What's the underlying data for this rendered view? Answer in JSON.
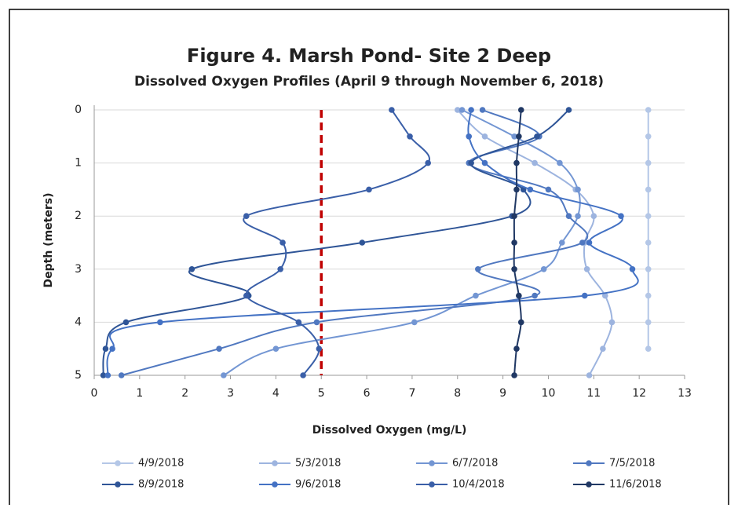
{
  "chart_data": {
    "type": "line",
    "title": "Figure 4. Marsh Pond- Site 2 Deep",
    "subtitle": "Dissolved Oxygen Profiles (April 9 through November 6, 2018)",
    "x_label": "Dissolved Oxygen (mg/L)",
    "y_label": "Depth (meters)",
    "xlim": [
      0,
      13
    ],
    "xticks": [
      0,
      1,
      2,
      3,
      4,
      5,
      6,
      7,
      8,
      9,
      10,
      11,
      12,
      13
    ],
    "ylim": [
      5,
      0
    ],
    "yticks": [
      0,
      1,
      2,
      3,
      4,
      5
    ],
    "grid": true,
    "legend": "bottom",
    "reference_line": {
      "x": 5,
      "color": "#c00000"
    },
    "series": [
      {
        "name": "4/9/2018",
        "color": "#b4c7e7",
        "x": [
          12.2,
          12.2,
          12.2,
          12.2,
          12.2,
          12.2,
          12.2,
          12.2,
          12.2,
          12.2
        ],
        "values": [
          0,
          0.5,
          1,
          1.5,
          2,
          2.5,
          3,
          3.5,
          4,
          4.5
        ]
      },
      {
        "name": "5/3/2018",
        "color": "#9db4df",
        "x": [
          8.0,
          8.6,
          9.7,
          10.6,
          11.0,
          10.8,
          10.85,
          11.25,
          11.4,
          11.2,
          10.9
        ],
        "values": [
          0,
          0.5,
          1,
          1.5,
          2,
          2.5,
          3,
          3.5,
          4,
          4.5,
          5
        ]
      },
      {
        "name": "6/7/2018",
        "color": "#7396d3",
        "x": [
          8.1,
          9.25,
          10.25,
          10.65,
          10.65,
          10.3,
          9.9,
          8.4,
          7.05,
          4.0,
          2.85
        ],
        "values": [
          0,
          0.5,
          1,
          1.5,
          2,
          2.5,
          3,
          3.5,
          4,
          4.5,
          5
        ]
      },
      {
        "name": "7/5/2018",
        "color": "#5078c0",
        "x": [
          8.55,
          9.8,
          8.25,
          10.0,
          10.45,
          10.75,
          8.45,
          9.7,
          4.9,
          2.75,
          0.6
        ],
        "values": [
          0,
          0.5,
          1,
          1.5,
          2,
          2.5,
          3,
          3.5,
          4,
          4.5,
          5
        ]
      },
      {
        "name": "8/9/2018",
        "color": "#2f5597",
        "x": [
          10.45,
          9.75,
          8.3,
          9.45,
          9.2,
          5.9,
          2.15,
          3.4,
          0.7,
          0.25,
          0.2
        ],
        "values": [
          0,
          0.5,
          1,
          1.5,
          2,
          2.5,
          3,
          3.5,
          4,
          4.5,
          5
        ]
      },
      {
        "name": "9/6/2018",
        "color": "#4472c4",
        "x": [
          8.3,
          8.25,
          8.6,
          9.6,
          11.6,
          10.9,
          11.85,
          10.8,
          1.45,
          0.4,
          0.3
        ],
        "values": [
          0,
          0.5,
          1,
          1.5,
          2,
          2.5,
          3,
          3.5,
          4,
          4.5,
          5
        ]
      },
      {
        "name": "10/4/2018",
        "color": "#3a5fa8",
        "x": [
          6.55,
          6.95,
          7.35,
          6.05,
          3.35,
          4.15,
          4.1,
          3.35,
          4.5,
          4.95,
          4.6
        ],
        "values": [
          0,
          0.5,
          1,
          1.5,
          2,
          2.5,
          3,
          3.5,
          4,
          4.5,
          5
        ]
      },
      {
        "name": "11/6/2018",
        "color": "#203864",
        "x": [
          9.4,
          9.35,
          9.3,
          9.3,
          9.25,
          9.25,
          9.25,
          9.35,
          9.4,
          9.3,
          9.25
        ],
        "values": [
          0,
          0.5,
          1,
          1.5,
          2,
          2.5,
          3,
          3.5,
          4,
          4.5,
          5
        ]
      }
    ]
  }
}
